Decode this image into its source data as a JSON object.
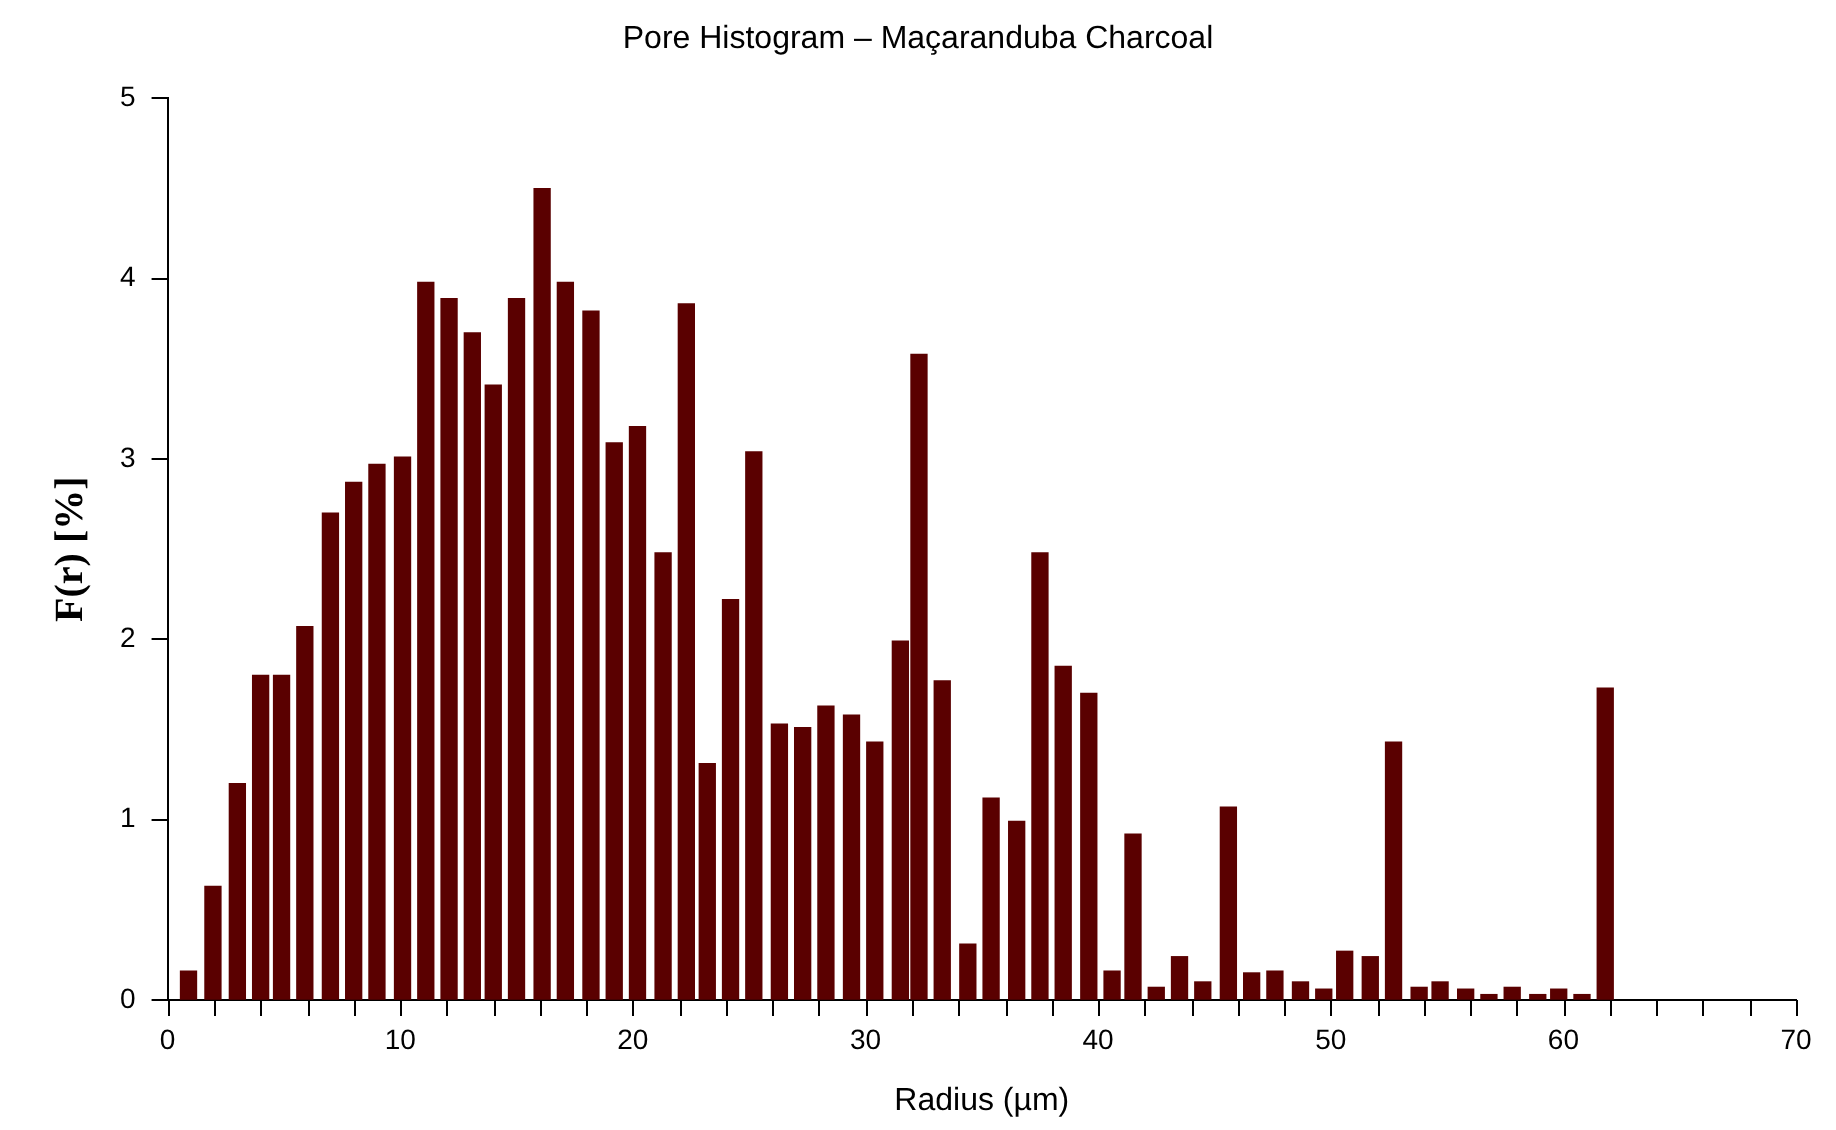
{
  "chart_data": {
    "type": "bar",
    "title": "Pore Histogram – Maçaranduba Charcoal",
    "xlabel": "Radius (µm)",
    "ylabel": "F(r) [%]",
    "x": [
      0.9,
      1.95,
      3.0,
      4.0,
      4.9,
      5.9,
      7.0,
      8.0,
      9.0,
      10.1,
      11.1,
      12.1,
      13.1,
      14.0,
      15.0,
      16.1,
      17.1,
      18.2,
      19.2,
      20.2,
      21.3,
      22.3,
      23.2,
      24.2,
      25.2,
      26.3,
      27.3,
      28.3,
      29.4,
      30.4,
      31.5,
      32.3,
      33.3,
      34.4,
      35.4,
      36.5,
      37.5,
      38.5,
      39.6,
      40.6,
      41.5,
      42.5,
      43.5,
      44.5,
      45.6,
      46.6,
      47.6,
      48.7,
      49.7,
      50.6,
      51.7,
      52.7,
      53.8,
      54.7,
      55.8,
      56.8,
      57.8,
      58.9,
      59.8,
      60.8,
      61.8
    ],
    "values": [
      0.16,
      0.63,
      1.2,
      1.8,
      1.8,
      2.07,
      2.7,
      2.87,
      2.97,
      3.01,
      3.98,
      3.89,
      3.7,
      3.41,
      3.89,
      4.5,
      3.98,
      3.82,
      3.09,
      3.18,
      2.48,
      3.86,
      1.31,
      2.22,
      3.04,
      1.53,
      1.51,
      1.63,
      1.58,
      1.43,
      1.99,
      3.58,
      1.77,
      0.31,
      1.12,
      0.99,
      2.48,
      1.85,
      1.7,
      0.16,
      0.92,
      0.07,
      0.24,
      0.1,
      1.07,
      0.15,
      0.16,
      0.1,
      0.06,
      0.27,
      0.24,
      1.43,
      0.07,
      0.1,
      0.06,
      0.03,
      0.07,
      0.03,
      0.06,
      0.03,
      1.73
    ],
    "color": "#5a0000",
    "xlim": [
      0,
      70
    ],
    "xticks": [
      0,
      {
        "value": 2,
        "label": null
      },
      {
        "value": 4,
        "label": null
      },
      {
        "value": 6,
        "label": null
      },
      {
        "value": 8,
        "label": null
      },
      10,
      {
        "value": 12,
        "label": null
      },
      {
        "value": 14,
        "label": null
      },
      {
        "value": 16,
        "label": null
      },
      {
        "value": 18,
        "label": null
      },
      20,
      {
        "value": 22,
        "label": null
      },
      {
        "value": 24,
        "label": null
      },
      {
        "value": 26,
        "label": null
      },
      {
        "value": 28,
        "label": null
      },
      30,
      {
        "value": 32,
        "label": null
      },
      {
        "value": 34,
        "label": null
      },
      {
        "value": 36,
        "label": null
      },
      {
        "value": 38,
        "label": null
      },
      40,
      {
        "value": 42,
        "label": null
      },
      {
        "value": 44,
        "label": null
      },
      {
        "value": 46,
        "label": null
      },
      {
        "value": 48,
        "label": null
      },
      50,
      {
        "value": 52,
        "label": null
      },
      {
        "value": 54,
        "label": null
      },
      {
        "value": 56,
        "label": null
      },
      {
        "value": 58,
        "label": null
      },
      60,
      {
        "value": 62,
        "label": null
      },
      {
        "value": 64,
        "label": null
      },
      {
        "value": 66,
        "label": null
      },
      {
        "value": 68,
        "label": null
      },
      70
    ],
    "ylim": [
      0,
      5
    ],
    "yticks": [
      0,
      1,
      2,
      3,
      4,
      5
    ],
    "grid": false,
    "legend": false
  }
}
